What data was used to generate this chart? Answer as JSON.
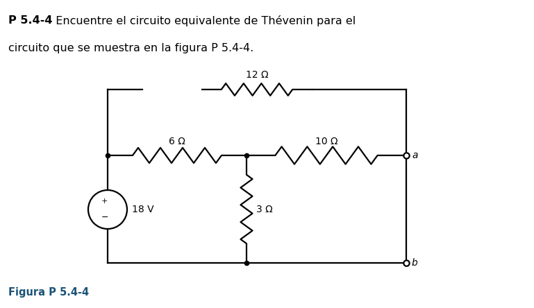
{
  "title_bold": "P 5.4-4",
  "title_normal": "  Encuentre el circuito equivalente de Thévenin para el",
  "title_line2": "circuito que se muestra en la figura P 5.4-4.",
  "figure_label": "Figura P 5.4-4",
  "bg_color": "#ffffff",
  "line_color": "#000000",
  "text_color": "#000000",
  "label_color": "#1a5276",
  "R1_label": "6 Ω",
  "R2_label": "12 Ω",
  "R3_label": "10 Ω",
  "R4_label": "3 Ω",
  "source_label": "18 V",
  "terminal_a": "a",
  "terminal_b": "b",
  "lw": 1.6
}
